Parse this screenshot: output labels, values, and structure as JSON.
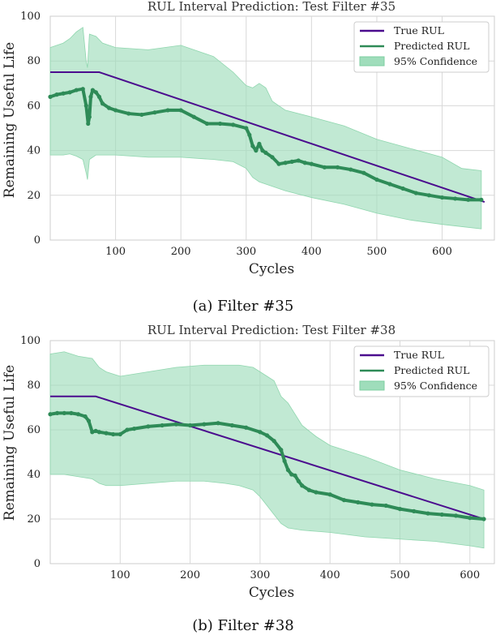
{
  "colors": {
    "true_rul": "#4B0C8E",
    "predicted": "#2E8B57",
    "band": "#9FDDBB"
  },
  "chart_data": [
    {
      "type": "line",
      "title": "RUL Interval Prediction: Test Filter #35",
      "xlabel": "Cycles",
      "ylabel": "Remaining Useful Life",
      "caption": "(a) Filter #35",
      "xlim": [
        0,
        680
      ],
      "ylim": [
        0,
        100
      ],
      "xticks": [
        100,
        200,
        300,
        400,
        500,
        600
      ],
      "yticks": [
        0,
        20,
        40,
        60,
        80,
        100
      ],
      "legend": [
        "True RUL",
        "Predicted RUL",
        "95% Confidence"
      ],
      "legend_position": "top-right",
      "true_rul": {
        "x": [
          0,
          75,
          665
        ],
        "y": [
          75,
          75,
          17
        ]
      },
      "predicted": {
        "x": [
          0,
          10,
          20,
          30,
          40,
          50,
          55,
          58,
          60,
          62,
          65,
          70,
          75,
          80,
          90,
          100,
          120,
          140,
          160,
          180,
          200,
          220,
          240,
          260,
          280,
          300,
          305,
          310,
          315,
          320,
          325,
          330,
          340,
          350,
          360,
          370,
          380,
          390,
          400,
          420,
          440,
          460,
          480,
          500,
          520,
          540,
          560,
          580,
          600,
          620,
          640,
          660
        ],
        "y": [
          64,
          65,
          65.5,
          66,
          67,
          67.5,
          60,
          52,
          55,
          64,
          67,
          66,
          64,
          61,
          59,
          58,
          56.5,
          56,
          57,
          58,
          58,
          55,
          52,
          52,
          51.5,
          50,
          47,
          42,
          40,
          43,
          40,
          39,
          37,
          34,
          34.5,
          35,
          35.5,
          34.5,
          34,
          32.5,
          32.5,
          31.5,
          30,
          27,
          25,
          23,
          21,
          20,
          19,
          18.5,
          18,
          18
        ]
      },
      "band": {
        "x": [
          0,
          20,
          30,
          40,
          50,
          55,
          57,
          60,
          70,
          80,
          100,
          150,
          200,
          250,
          280,
          300,
          310,
          320,
          330,
          340,
          360,
          400,
          450,
          500,
          550,
          600,
          630,
          660
        ],
        "upper": [
          86,
          88,
          90,
          93,
          95,
          80,
          77,
          92,
          91,
          88,
          86,
          85,
          87,
          82,
          75,
          69,
          68,
          70,
          68,
          62,
          58,
          55,
          51,
          45,
          41,
          37,
          32,
          31
        ],
        "lower": [
          38,
          38,
          38.5,
          37.5,
          36,
          30,
          27,
          36,
          38,
          38,
          38,
          37,
          37,
          36,
          35,
          32,
          28,
          26,
          25,
          24,
          22,
          19,
          16,
          12,
          9,
          7,
          6,
          5
        ]
      }
    },
    {
      "type": "line",
      "title": "RUL Interval Prediction: Test Filter #38",
      "xlabel": "Cycles",
      "ylabel": "Remaining Useful Life",
      "caption": "(b) Filter #38",
      "xlim": [
        0,
        635
      ],
      "ylim": [
        0,
        100
      ],
      "xticks": [
        100,
        200,
        300,
        400,
        500,
        600
      ],
      "yticks": [
        0,
        20,
        40,
        60,
        80,
        100
      ],
      "legend": [
        "True RUL",
        "Predicted RUL",
        "95% Confidence"
      ],
      "legend_position": "top-right",
      "true_rul": {
        "x": [
          0,
          65,
          620
        ],
        "y": [
          75,
          75,
          20
        ]
      },
      "predicted": {
        "x": [
          0,
          10,
          20,
          30,
          40,
          50,
          55,
          60,
          65,
          70,
          80,
          90,
          100,
          110,
          120,
          140,
          160,
          180,
          200,
          220,
          240,
          260,
          280,
          300,
          310,
          320,
          330,
          335,
          340,
          345,
          350,
          355,
          360,
          370,
          380,
          400,
          420,
          440,
          460,
          480,
          500,
          520,
          540,
          560,
          580,
          600,
          620
        ],
        "y": [
          67,
          67.5,
          67.5,
          67.5,
          67,
          66,
          64,
          59,
          59.5,
          59,
          58.5,
          58,
          58,
          60,
          60.5,
          61.5,
          62,
          62.5,
          62,
          62.5,
          63,
          62,
          61,
          59,
          57.5,
          55,
          51,
          46,
          42,
          40,
          39.5,
          37,
          35,
          33,
          32,
          31,
          28.5,
          27.5,
          26.5,
          26,
          24.5,
          23.5,
          22.5,
          22,
          21.5,
          20.5,
          20
        ]
      },
      "band": {
        "x": [
          0,
          20,
          40,
          60,
          70,
          80,
          100,
          140,
          180,
          220,
          250,
          270,
          290,
          300,
          310,
          320,
          330,
          340,
          360,
          380,
          400,
          450,
          500,
          550,
          600,
          620
        ],
        "upper": [
          94,
          95,
          93,
          92,
          88,
          86,
          84,
          86,
          88,
          89,
          89,
          89,
          88,
          86,
          84,
          82,
          75,
          72,
          62,
          57,
          53,
          48,
          42,
          38,
          35,
          33
        ],
        "lower": [
          40,
          40,
          39,
          38,
          36,
          35,
          35,
          36,
          37,
          37,
          36,
          35,
          33,
          30,
          26,
          22,
          18,
          16,
          15,
          14.5,
          14,
          12,
          11,
          10,
          8,
          7
        ]
      }
    }
  ]
}
